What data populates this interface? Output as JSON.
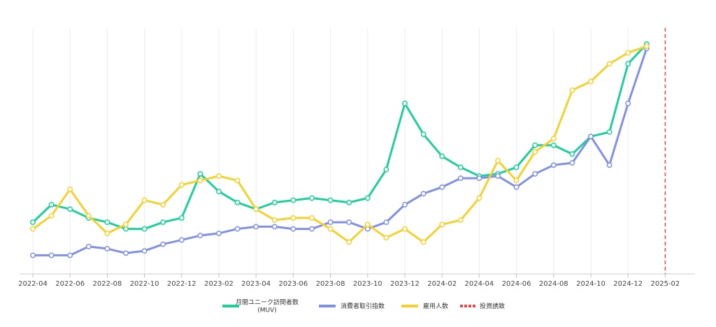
{
  "chart_data": {
    "type": "line",
    "title": "",
    "xlabel": "",
    "ylabel": "",
    "grid": {
      "vertical": true,
      "horizontal": false
    },
    "legend_position": "bottom-center",
    "x": [
      "2022-04",
      "2022-05",
      "2022-06",
      "2022-07",
      "2022-08",
      "2022-09",
      "2022-10",
      "2022-11",
      "2022-12",
      "2023-01",
      "2023-02",
      "2023-03",
      "2023-04",
      "2023-05",
      "2023-06",
      "2023-07",
      "2023-08",
      "2023-09",
      "2023-10",
      "2023-11",
      "2023-12",
      "2024-01",
      "2024-02",
      "2024-03",
      "2024-04",
      "2024-05",
      "2024-06",
      "2024-07",
      "2024-08",
      "2024-09",
      "2024-10",
      "2024-11",
      "2024-12",
      "2025-01"
    ],
    "x_tick_labels": [
      "2022-04",
      "2022-06",
      "2022-08",
      "2022-10",
      "2022-12",
      "2023-02",
      "2023-04",
      "2023-06",
      "2023-08",
      "2023-10",
      "2023-12",
      "2024-02",
      "2024-04",
      "2024-06",
      "2024-08",
      "2024-10",
      "2024-12",
      "2025-02"
    ],
    "x_range": [
      "2022-04",
      "2025-02"
    ],
    "y_range": [
      0,
      100
    ],
    "y_ticks_visible": false,
    "series": [
      {
        "name": "月間ユニーク訪問者数\n(MUV)",
        "color": "#1ecf9c",
        "values": [
          19,
          27,
          25,
          21,
          19,
          16,
          16,
          19,
          21,
          41,
          33,
          28,
          25,
          28,
          29,
          30,
          29,
          28,
          30,
          43,
          73,
          59,
          49,
          44,
          40,
          41,
          44,
          54,
          54,
          50,
          58,
          60,
          91,
          100
        ]
      },
      {
        "name": "消費者取引指数",
        "color": "#7f90e6",
        "values": [
          4,
          4,
          4,
          8,
          7,
          5,
          6,
          9,
          11,
          13,
          14,
          16,
          17,
          17,
          16,
          16,
          19,
          19,
          16,
          19,
          27,
          32,
          35,
          39,
          39,
          40,
          35,
          41,
          45,
          46,
          58,
          45,
          73,
          98
        ]
      },
      {
        "name": "雇用人数",
        "color": "#f5d130",
        "values": [
          16,
          22,
          34,
          22,
          14,
          18,
          29,
          27,
          36,
          38,
          40,
          38,
          25,
          20,
          21,
          21,
          16,
          10,
          18,
          12,
          16,
          10,
          18,
          20,
          30,
          47,
          38,
          51,
          57,
          79,
          83,
          91,
          96,
          99
        ]
      },
      {
        "name": "投資誘致",
        "color": "#e64b4b",
        "style": "dashed",
        "vertical_at": "2025-02"
      }
    ]
  }
}
